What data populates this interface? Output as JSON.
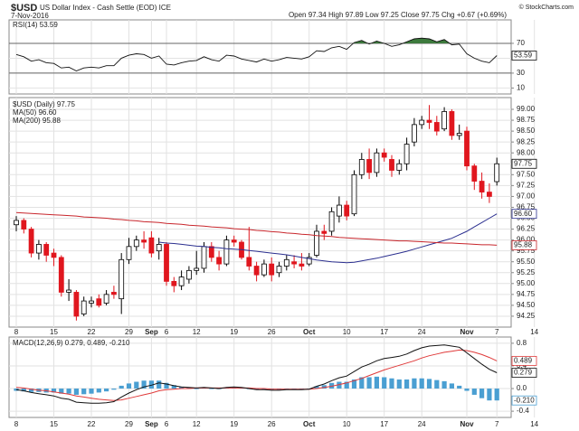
{
  "header": {
    "symbol": "$USD",
    "description": "US Dollar Index - Cash Settle (EOD) ICE",
    "date": "7-Nov-2016",
    "quote": "Open 97.34  High 97.89  Low 97.25  Close 97.75  Chg +0.67 (+0.69%)",
    "credit": "© StockCharts.com"
  },
  "chart_data": [
    {
      "type": "candlestick",
      "categories": [
        "8",
        null,
        null,
        null,
        null,
        "15",
        null,
        null,
        null,
        null,
        "22",
        null,
        null,
        null,
        null,
        "29",
        null,
        null,
        "Sep",
        null,
        "6",
        null,
        null,
        null,
        "12",
        null,
        null,
        null,
        null,
        "19",
        null,
        null,
        null,
        null,
        "26",
        null,
        null,
        null,
        null,
        "Oct",
        null,
        null,
        null,
        null,
        "10",
        null,
        null,
        null,
        null,
        "17",
        null,
        null,
        null,
        null,
        "24",
        null,
        null,
        null,
        null,
        null,
        "Nov",
        null,
        null,
        null,
        "7",
        null,
        null,
        null,
        null,
        "14"
      ],
      "colors": {
        "up": "#000000",
        "down": "#e0161e"
      },
      "ylim": [
        94.0,
        99.27
      ],
      "yticks": [
        {
          "value": 94.25,
          "label": "94.25"
        },
        {
          "value": 94.5,
          "label": "94.50"
        },
        94.75,
        {
          "value": 95,
          "label": "95.00"
        },
        95.25,
        {
          "value": 95.5,
          "label": "95.50"
        },
        95.75,
        {
          "value": 96,
          "label": "96.00"
        },
        96.25,
        {
          "value": 96.5,
          "label": "96.50"
        },
        96.75,
        {
          "value": 97,
          "label": "97.00"
        },
        97.25,
        {
          "value": 97.5,
          "label": "97.50"
        },
        97.75,
        {
          "value": 98,
          "label": "98.00"
        },
        98.25,
        {
          "value": 98.5,
          "label": "98.50"
        },
        98.75,
        {
          "value": 99,
          "label": "99.00"
        }
      ],
      "grid": true,
      "candles": {
        "name": "$USD (Daily) 97.75",
        "last_label": "97.75",
        "open": [
          96.35,
          96.45,
          96.25,
          95.7,
          95.9,
          95.7,
          95.6,
          94.8,
          94.8,
          94.3,
          94.55,
          94.65,
          94.55,
          94.8,
          94.65,
          95.55,
          95.85,
          96.0,
          96.05,
          95.75,
          95.9,
          95.05,
          94.95,
          95.1,
          95.3,
          95.35,
          95.85,
          95.6,
          95.45,
          96.0,
          95.95,
          95.6,
          95.4,
          95.2,
          95.45,
          95.25,
          95.4,
          95.5,
          95.45,
          95.45,
          95.65,
          96.2,
          96.2,
          96.55,
          96.8,
          96.6,
          97.5,
          97.85,
          97.55,
          98.0,
          97.85,
          97.6,
          97.75,
          98.25,
          98.65,
          98.75,
          98.7,
          98.55,
          98.95,
          98.4,
          98.5,
          97.7,
          97.35,
          97.1,
          97.34,
          null,
          null,
          null,
          null,
          null
        ],
        "high": [
          96.55,
          96.5,
          96.3,
          96.0,
          95.95,
          95.8,
          95.65,
          95.1,
          94.85,
          94.7,
          94.7,
          94.75,
          94.85,
          94.95,
          95.7,
          96.05,
          96.1,
          96.2,
          96.2,
          96.05,
          95.95,
          95.15,
          95.3,
          95.4,
          95.75,
          95.95,
          95.95,
          95.75,
          96.1,
          96.1,
          96.0,
          96.3,
          95.5,
          95.55,
          95.6,
          95.5,
          95.65,
          95.65,
          95.7,
          95.7,
          96.35,
          96.35,
          96.75,
          97.0,
          96.9,
          97.6,
          98.0,
          98.1,
          98.1,
          98.1,
          97.95,
          97.85,
          98.35,
          98.8,
          98.85,
          99.1,
          98.85,
          99.05,
          99.0,
          98.65,
          98.6,
          97.75,
          97.55,
          97.3,
          97.89,
          null,
          null,
          null,
          null,
          null
        ],
        "low": [
          96.2,
          96.15,
          95.6,
          95.55,
          95.5,
          95.4,
          94.7,
          94.6,
          94.15,
          94.25,
          94.45,
          94.45,
          94.5,
          94.65,
          94.3,
          95.45,
          95.75,
          95.8,
          95.6,
          95.55,
          94.95,
          94.8,
          94.85,
          95.0,
          95.2,
          95.25,
          95.5,
          95.3,
          95.4,
          95.85,
          95.55,
          95.3,
          95.05,
          95.15,
          95.05,
          95.15,
          95.3,
          95.35,
          95.3,
          95.4,
          95.6,
          96.0,
          96.1,
          96.4,
          96.45,
          96.55,
          97.4,
          97.4,
          97.45,
          97.8,
          97.45,
          97.5,
          97.6,
          98.15,
          98.55,
          98.55,
          98.4,
          98.5,
          98.3,
          98.3,
          97.6,
          97.15,
          96.95,
          96.85,
          97.25,
          null,
          null,
          null,
          null,
          null
        ],
        "close": [
          96.45,
          96.25,
          95.7,
          95.9,
          95.65,
          95.6,
          94.8,
          94.85,
          94.25,
          94.6,
          94.6,
          94.5,
          94.75,
          94.75,
          95.55,
          95.85,
          96.0,
          95.95,
          95.7,
          95.9,
          95.05,
          94.95,
          95.15,
          95.3,
          95.35,
          95.85,
          95.6,
          95.45,
          96.0,
          95.95,
          95.6,
          95.4,
          95.2,
          95.45,
          95.2,
          95.4,
          95.55,
          95.45,
          95.4,
          95.6,
          96.2,
          96.15,
          96.65,
          96.8,
          96.55,
          97.5,
          97.85,
          97.55,
          98.0,
          97.9,
          97.6,
          97.75,
          98.2,
          98.65,
          98.75,
          98.7,
          98.5,
          98.95,
          98.4,
          98.45,
          97.7,
          97.35,
          97.1,
          97.0,
          97.75,
          null,
          null,
          null,
          null,
          null
        ]
      },
      "series": [
        {
          "name": "MA(50) 96.60",
          "last_label": "96.60",
          "color": "#2b2f8f",
          "values": [
            null,
            null,
            null,
            null,
            null,
            null,
            null,
            null,
            null,
            null,
            null,
            null,
            null,
            null,
            null,
            null,
            null,
            null,
            null,
            95.95,
            95.93,
            95.92,
            95.9,
            95.88,
            95.86,
            95.85,
            95.83,
            95.82,
            95.8,
            95.79,
            95.78,
            95.76,
            95.74,
            95.72,
            95.7,
            95.68,
            95.66,
            95.63,
            95.6,
            95.57,
            95.54,
            95.52,
            95.5,
            95.49,
            95.48,
            95.49,
            95.52,
            95.55,
            95.58,
            95.62,
            95.66,
            95.7,
            95.74,
            95.79,
            95.84,
            95.89,
            95.94,
            95.99,
            96.04,
            96.12,
            96.2,
            96.3,
            96.4,
            96.5,
            96.6,
            null,
            null,
            null,
            null,
            null
          ]
        },
        {
          "name": "MA(200) 95.88",
          "last_label": "95.88",
          "color": "#c8262c",
          "values": [
            96.63,
            96.62,
            96.61,
            96.6,
            96.59,
            96.58,
            96.57,
            96.56,
            96.55,
            96.53,
            96.52,
            96.51,
            96.5,
            96.48,
            96.47,
            96.45,
            96.44,
            96.42,
            96.41,
            96.4,
            96.38,
            96.37,
            96.36,
            96.34,
            96.33,
            96.32,
            96.3,
            96.29,
            96.28,
            96.26,
            96.25,
            96.24,
            96.22,
            96.21,
            96.19,
            96.18,
            96.16,
            96.15,
            96.13,
            96.12,
            96.1,
            96.09,
            96.08,
            96.06,
            96.05,
            96.04,
            96.03,
            96.02,
            96.01,
            96.0,
            95.99,
            95.98,
            95.98,
            95.97,
            95.96,
            95.95,
            95.94,
            95.93,
            95.93,
            95.92,
            95.91,
            95.9,
            95.89,
            95.89,
            95.88,
            null,
            null,
            null,
            null,
            null
          ]
        }
      ]
    },
    {
      "type": "line",
      "ylim": [
        2,
        101.5
      ],
      "yticks": [
        10,
        30,
        50,
        70
      ],
      "levels": [
        30,
        70
      ],
      "fill_color": "#3d7a3d",
      "grid": true,
      "series": [
        {
          "name": "RSI(14) 53.59",
          "last_label": "53.59",
          "color": "#111111",
          "values": [
            55,
            52,
            46,
            48,
            44,
            43,
            37,
            38,
            33,
            37,
            38,
            37,
            40,
            40,
            50,
            54,
            56,
            55,
            50,
            53,
            42,
            41,
            44,
            46,
            47,
            52,
            48,
            46,
            54,
            53,
            49,
            47,
            45,
            49,
            46,
            48,
            51,
            50,
            49,
            52,
            60,
            59,
            64,
            66,
            62,
            71,
            74,
            69,
            73,
            70,
            66,
            68,
            72,
            76,
            77,
            76,
            72,
            75,
            68,
            69,
            56,
            50,
            46,
            44,
            53.59,
            null,
            null,
            null,
            null,
            null
          ]
        }
      ]
    },
    {
      "type": "macd",
      "label": "MACD(12,26,9) 0.279, 0.489, -0.210",
      "ylim": [
        -0.51,
        0.91
      ],
      "yticks": [
        -0.4,
        {
          "value": 0,
          "label": "0.0"
        },
        0.4,
        0.8
      ],
      "grid": true,
      "series": [
        {
          "kind": "bar",
          "last_label": "-0.210",
          "color": "#4a9fd2",
          "values": [
            -0.04,
            -0.05,
            -0.06,
            -0.06,
            -0.07,
            -0.07,
            -0.09,
            -0.09,
            -0.11,
            -0.1,
            -0.09,
            -0.07,
            -0.05,
            -0.02,
            0.05,
            0.09,
            0.12,
            0.14,
            0.14,
            0.14,
            0.1,
            0.06,
            0.03,
            0.02,
            0.0,
            0.01,
            0.0,
            -0.01,
            0.01,
            0.02,
            0.01,
            -0.01,
            -0.02,
            -0.02,
            -0.02,
            -0.02,
            -0.01,
            -0.01,
            -0.01,
            0.0,
            0.04,
            0.06,
            0.1,
            0.12,
            0.12,
            0.16,
            0.2,
            0.2,
            0.21,
            0.2,
            0.18,
            0.16,
            0.16,
            0.18,
            0.18,
            0.17,
            0.15,
            0.13,
            0.09,
            0.05,
            -0.04,
            -0.11,
            -0.17,
            -0.21,
            -0.21,
            null,
            null,
            null,
            null,
            null
          ]
        },
        {
          "kind": "line",
          "last_label": "0.489",
          "color": "#e03a3a",
          "values": [
            0.02,
            0.01,
            -0.01,
            -0.03,
            -0.04,
            -0.06,
            -0.08,
            -0.1,
            -0.13,
            -0.15,
            -0.17,
            -0.19,
            -0.2,
            -0.21,
            -0.2,
            -0.17,
            -0.14,
            -0.11,
            -0.08,
            -0.04,
            -0.02,
            -0.01,
            0.0,
            0.0,
            0.01,
            0.01,
            0.01,
            0.01,
            0.01,
            0.01,
            0.01,
            0.01,
            0.0,
            0.0,
            -0.01,
            -0.01,
            -0.01,
            -0.01,
            -0.01,
            -0.01,
            0.0,
            0.02,
            0.04,
            0.07,
            0.1,
            0.14,
            0.18,
            0.23,
            0.28,
            0.33,
            0.37,
            0.41,
            0.45,
            0.49,
            0.54,
            0.58,
            0.61,
            0.64,
            0.66,
            0.68,
            0.67,
            0.64,
            0.6,
            0.55,
            0.489,
            null,
            null,
            null,
            null,
            null
          ]
        },
        {
          "kind": "line",
          "last_label": "0.279",
          "color": "#111111",
          "values": [
            -0.02,
            -0.04,
            -0.07,
            -0.09,
            -0.11,
            -0.13,
            -0.17,
            -0.19,
            -0.24,
            -0.25,
            -0.26,
            -0.26,
            -0.25,
            -0.23,
            -0.15,
            -0.08,
            -0.02,
            0.03,
            0.06,
            0.1,
            0.08,
            0.05,
            0.03,
            0.02,
            0.01,
            0.02,
            0.01,
            0.0,
            0.02,
            0.03,
            0.02,
            0.0,
            -0.02,
            -0.02,
            -0.03,
            -0.03,
            -0.02,
            -0.02,
            -0.02,
            -0.01,
            0.04,
            0.08,
            0.14,
            0.19,
            0.22,
            0.3,
            0.38,
            0.43,
            0.49,
            0.53,
            0.55,
            0.57,
            0.61,
            0.67,
            0.72,
            0.75,
            0.76,
            0.77,
            0.75,
            0.73,
            0.63,
            0.53,
            0.43,
            0.34,
            0.279,
            null,
            null,
            null,
            null,
            null
          ]
        }
      ]
    }
  ]
}
